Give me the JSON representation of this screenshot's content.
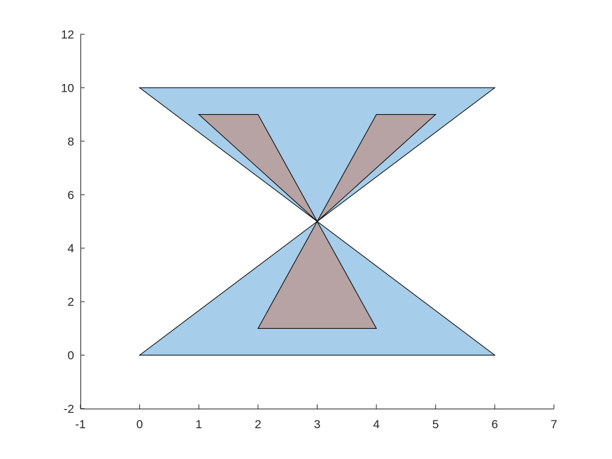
{
  "chart_data": {
    "type": "polygon",
    "title": "",
    "xlabel": "",
    "ylabel": "",
    "xlim": [
      -1,
      7
    ],
    "ylim": [
      -2,
      12
    ],
    "x_ticks": [
      -1,
      0,
      1,
      2,
      3,
      4,
      5,
      6,
      7
    ],
    "y_ticks": [
      -2,
      0,
      2,
      4,
      6,
      8,
      10,
      12
    ],
    "grid": false,
    "legend": "none",
    "polygons": [
      {
        "id": "outer-top",
        "fill": "#a6cde9",
        "points": [
          [
            0,
            10
          ],
          [
            6,
            10
          ],
          [
            3,
            5
          ]
        ]
      },
      {
        "id": "outer-bottom",
        "fill": "#a6cde9",
        "points": [
          [
            0,
            0
          ],
          [
            6,
            0
          ],
          [
            3,
            5
          ]
        ]
      },
      {
        "id": "inner-top-left",
        "fill": "#b7a3a3",
        "points": [
          [
            1,
            9
          ],
          [
            2,
            9
          ],
          [
            3,
            5
          ]
        ]
      },
      {
        "id": "inner-top-right",
        "fill": "#b7a3a3",
        "points": [
          [
            4,
            9
          ],
          [
            5,
            9
          ],
          [
            3,
            5
          ]
        ]
      },
      {
        "id": "inner-bottom",
        "fill": "#b7a3a3",
        "points": [
          [
            2,
            1
          ],
          [
            4,
            1
          ],
          [
            3,
            5
          ]
        ]
      }
    ]
  }
}
